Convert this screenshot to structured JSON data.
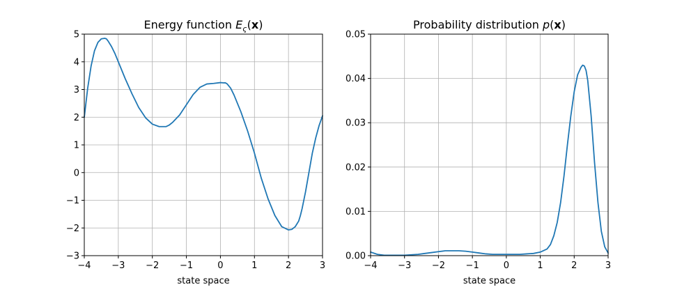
{
  "colors": {
    "line": "#1f77b4",
    "grid": "#b0b0b0",
    "frame": "#000000"
  },
  "chart_data": [
    {
      "type": "line",
      "title": "Energy function ",
      "title_math": {
        "symbol": "E",
        "sub": "ς",
        "arg_open": "(",
        "arg": "x",
        "arg_close": ")"
      },
      "xlabel": "state space",
      "ylabel": "",
      "xlim": [
        -4,
        3
      ],
      "ylim": [
        -3,
        5
      ],
      "grid": true,
      "xticks": [
        -4,
        -3,
        -2,
        -1,
        0,
        1,
        2,
        3
      ],
      "yticks": [
        -3,
        -2,
        -1,
        0,
        1,
        2,
        3,
        4,
        5
      ],
      "xtick_labels": [
        "−4",
        "−3",
        "−2",
        "−1",
        "0",
        "1",
        "2",
        "3"
      ],
      "ytick_labels": [
        "−3",
        "−2",
        "−1",
        "0",
        "1",
        "2",
        "3",
        "4",
        "5"
      ],
      "series": [
        {
          "x": [
            -4.0,
            -3.9,
            -3.8,
            -3.7,
            -3.6,
            -3.5,
            -3.4,
            -3.35,
            -3.3,
            -3.2,
            -3.1,
            -3.0,
            -2.8,
            -2.6,
            -2.4,
            -2.2,
            -2.0,
            -1.8,
            -1.6,
            -1.5,
            -1.4,
            -1.2,
            -1.0,
            -0.8,
            -0.6,
            -0.4,
            -0.2,
            0.0,
            0.1,
            0.15,
            0.2,
            0.3,
            0.4,
            0.6,
            0.8,
            1.0,
            1.2,
            1.4,
            1.6,
            1.8,
            2.0,
            2.1,
            2.2,
            2.3,
            2.35,
            2.4,
            2.5,
            2.6,
            2.7,
            2.8,
            2.9,
            3.0
          ],
          "y": [
            2.0,
            3.05,
            3.85,
            4.4,
            4.7,
            4.83,
            4.85,
            4.83,
            4.75,
            4.55,
            4.3,
            4.0,
            3.4,
            2.85,
            2.35,
            1.98,
            1.75,
            1.66,
            1.66,
            1.72,
            1.82,
            2.08,
            2.45,
            2.82,
            3.08,
            3.2,
            3.22,
            3.25,
            3.24,
            3.24,
            3.2,
            3.05,
            2.8,
            2.2,
            1.5,
            0.7,
            -0.2,
            -0.95,
            -1.55,
            -1.95,
            -2.07,
            -2.05,
            -1.95,
            -1.75,
            -1.55,
            -1.3,
            -0.7,
            0.0,
            0.7,
            1.25,
            1.7,
            2.05
          ]
        }
      ]
    },
    {
      "type": "line",
      "title": "Probability distribution ",
      "title_math": {
        "symbol": "p",
        "sub": "",
        "arg_open": "(",
        "arg": "x",
        "arg_close": ")"
      },
      "xlabel": "state space",
      "ylabel": "",
      "xlim": [
        -4,
        3
      ],
      "ylim": [
        0,
        0.05
      ],
      "grid": true,
      "xticks": [
        -4,
        -3,
        -2,
        -1,
        0,
        1,
        2,
        3
      ],
      "yticks": [
        0,
        0.01,
        0.02,
        0.03,
        0.04,
        0.05
      ],
      "xtick_labels": [
        "−4",
        "−3",
        "−2",
        "−1",
        "0",
        "1",
        "2",
        "3"
      ],
      "ytick_labels": [
        "0.00",
        "0.01",
        "0.02",
        "0.03",
        "0.04",
        "0.05"
      ],
      "series": [
        {
          "x": [
            -4.0,
            -3.8,
            -3.6,
            -3.4,
            -3.2,
            -3.0,
            -2.8,
            -2.6,
            -2.4,
            -2.2,
            -2.0,
            -1.8,
            -1.6,
            -1.4,
            -1.2,
            -1.0,
            -0.8,
            -0.6,
            -0.4,
            -0.2,
            0.0,
            0.2,
            0.4,
            0.6,
            0.8,
            1.0,
            1.2,
            1.3,
            1.4,
            1.5,
            1.6,
            1.7,
            1.8,
            1.9,
            2.0,
            2.1,
            2.2,
            2.25,
            2.3,
            2.35,
            2.4,
            2.5,
            2.6,
            2.7,
            2.8,
            2.9,
            3.0
          ],
          "y": [
            0.0008,
            0.0003,
            0.0001,
            0.0001,
            0.0001,
            0.0001,
            0.0002,
            0.0003,
            0.0005,
            0.0007,
            0.0009,
            0.0011,
            0.0011,
            0.0011,
            0.001,
            0.0008,
            0.0006,
            0.0004,
            0.0003,
            0.0003,
            0.0003,
            0.0003,
            0.0003,
            0.0004,
            0.0005,
            0.0008,
            0.0015,
            0.0025,
            0.0045,
            0.0075,
            0.012,
            0.018,
            0.025,
            0.0315,
            0.037,
            0.0408,
            0.0425,
            0.043,
            0.0428,
            0.0418,
            0.0395,
            0.0315,
            0.021,
            0.012,
            0.0055,
            0.002,
            0.0006
          ]
        }
      ]
    }
  ]
}
